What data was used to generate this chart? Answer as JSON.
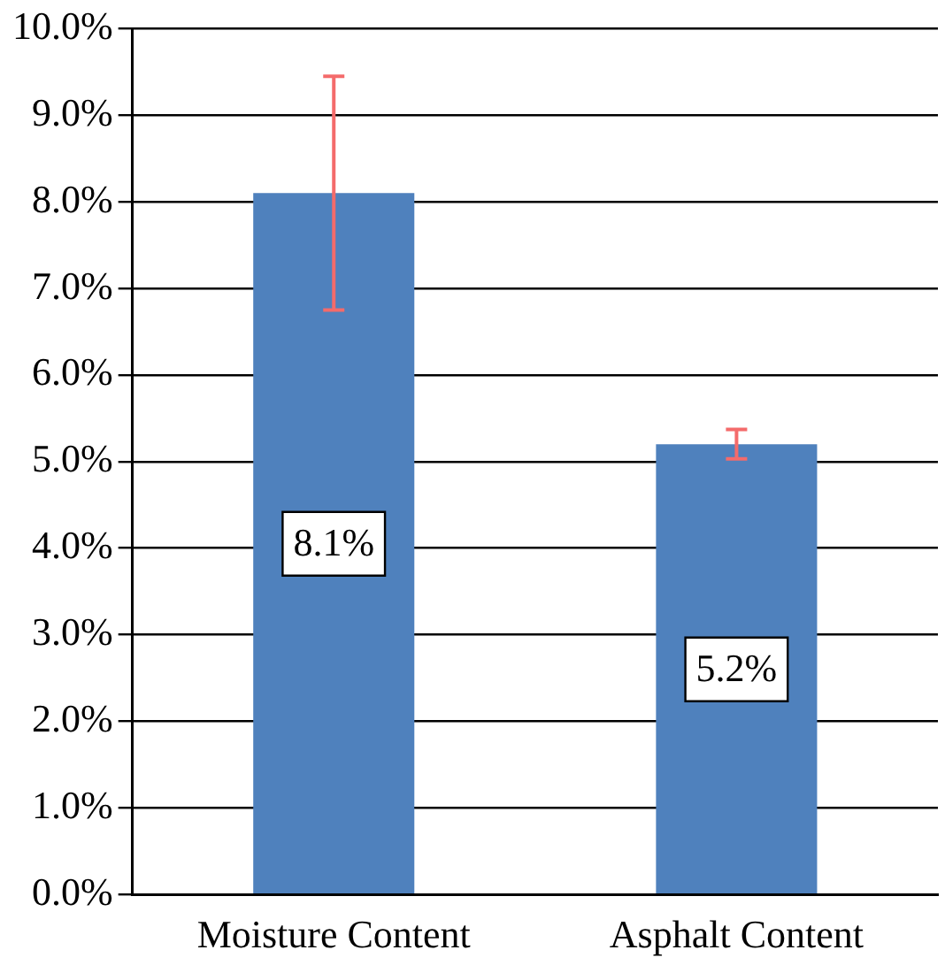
{
  "chart_data": {
    "type": "bar",
    "categories": [
      "Moisture Content",
      "Asphalt Content"
    ],
    "series": [
      {
        "color": "#4f81bd",
        "values": [
          8.1,
          5.2
        ],
        "errors": [
          1.35,
          0.17
        ],
        "value_labels": [
          "8.1%",
          "5.2%"
        ]
      }
    ],
    "ylim": [
      0,
      10
    ],
    "yticks": [
      {
        "value": 0,
        "label": "0.0%"
      },
      {
        "value": 1,
        "label": "1.0%"
      },
      {
        "value": 2,
        "label": "2.0%"
      },
      {
        "value": 3,
        "label": "3.0%"
      },
      {
        "value": 4,
        "label": "4.0%"
      },
      {
        "value": 5,
        "label": "5.0%"
      },
      {
        "value": 6,
        "label": "6.0%"
      },
      {
        "value": 7,
        "label": "7.0%"
      },
      {
        "value": 8,
        "label": "8.0%"
      },
      {
        "value": 9,
        "label": "9.0%"
      },
      {
        "value": 10,
        "label": "10.0%"
      }
    ],
    "grid": "y",
    "legend": false
  }
}
